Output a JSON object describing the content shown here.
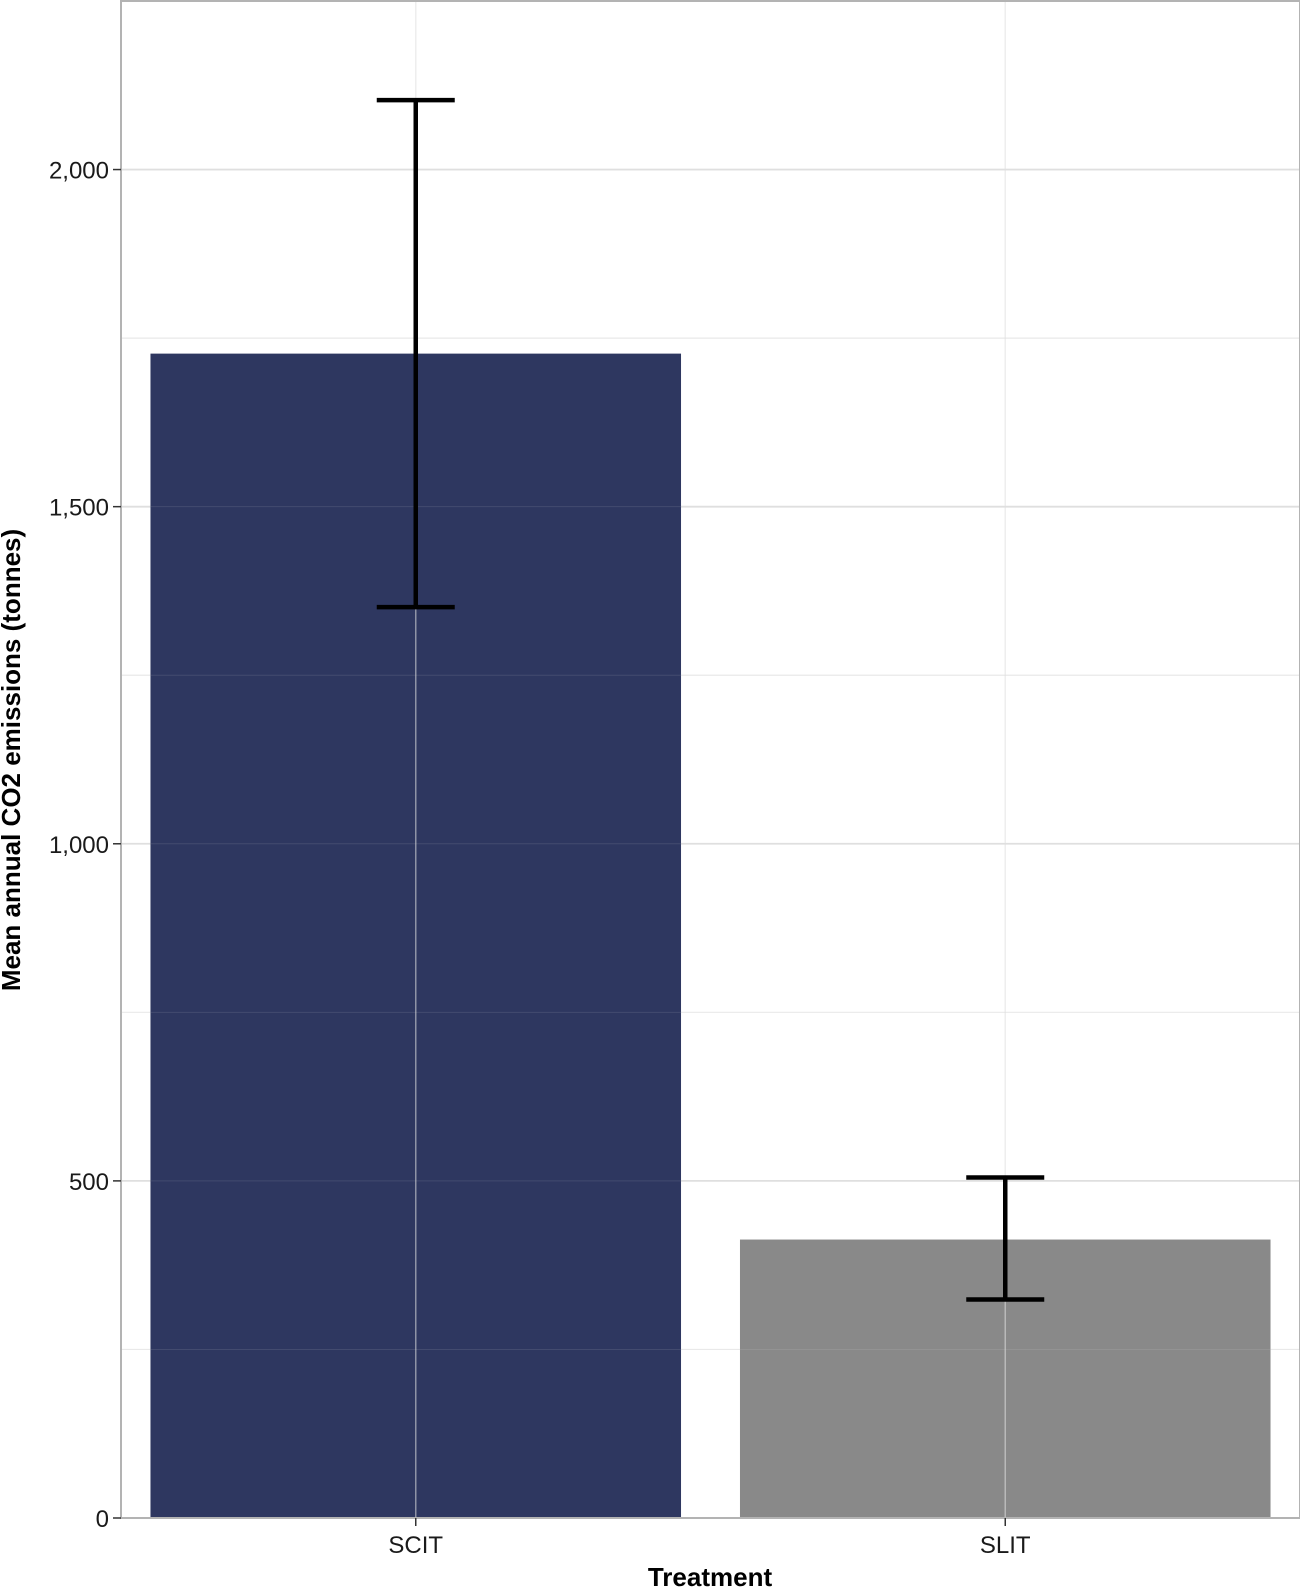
{
  "chart_data": {
    "type": "bar",
    "title": "",
    "xlabel": "Treatment",
    "ylabel": "Mean annual CO2 emissions (tonnes)",
    "categories": [
      "SCIT",
      "SLIT"
    ],
    "values": [
      1727,
      413
    ],
    "error_bars": [
      {
        "category": "SCIT",
        "low": 1351,
        "high": 2103
      },
      {
        "category": "SLIT",
        "low": 324,
        "high": 505
      }
    ],
    "bar_colors": [
      "#2e3760",
      "#898989"
    ],
    "ylim": [
      0,
      2250
    ],
    "y_ticks": [
      0,
      500,
      1000,
      1500,
      2000
    ],
    "y_tick_labels": [
      "0",
      "500",
      "1,000",
      "1,500",
      "2,000"
    ],
    "grid": true,
    "legend": "none"
  }
}
